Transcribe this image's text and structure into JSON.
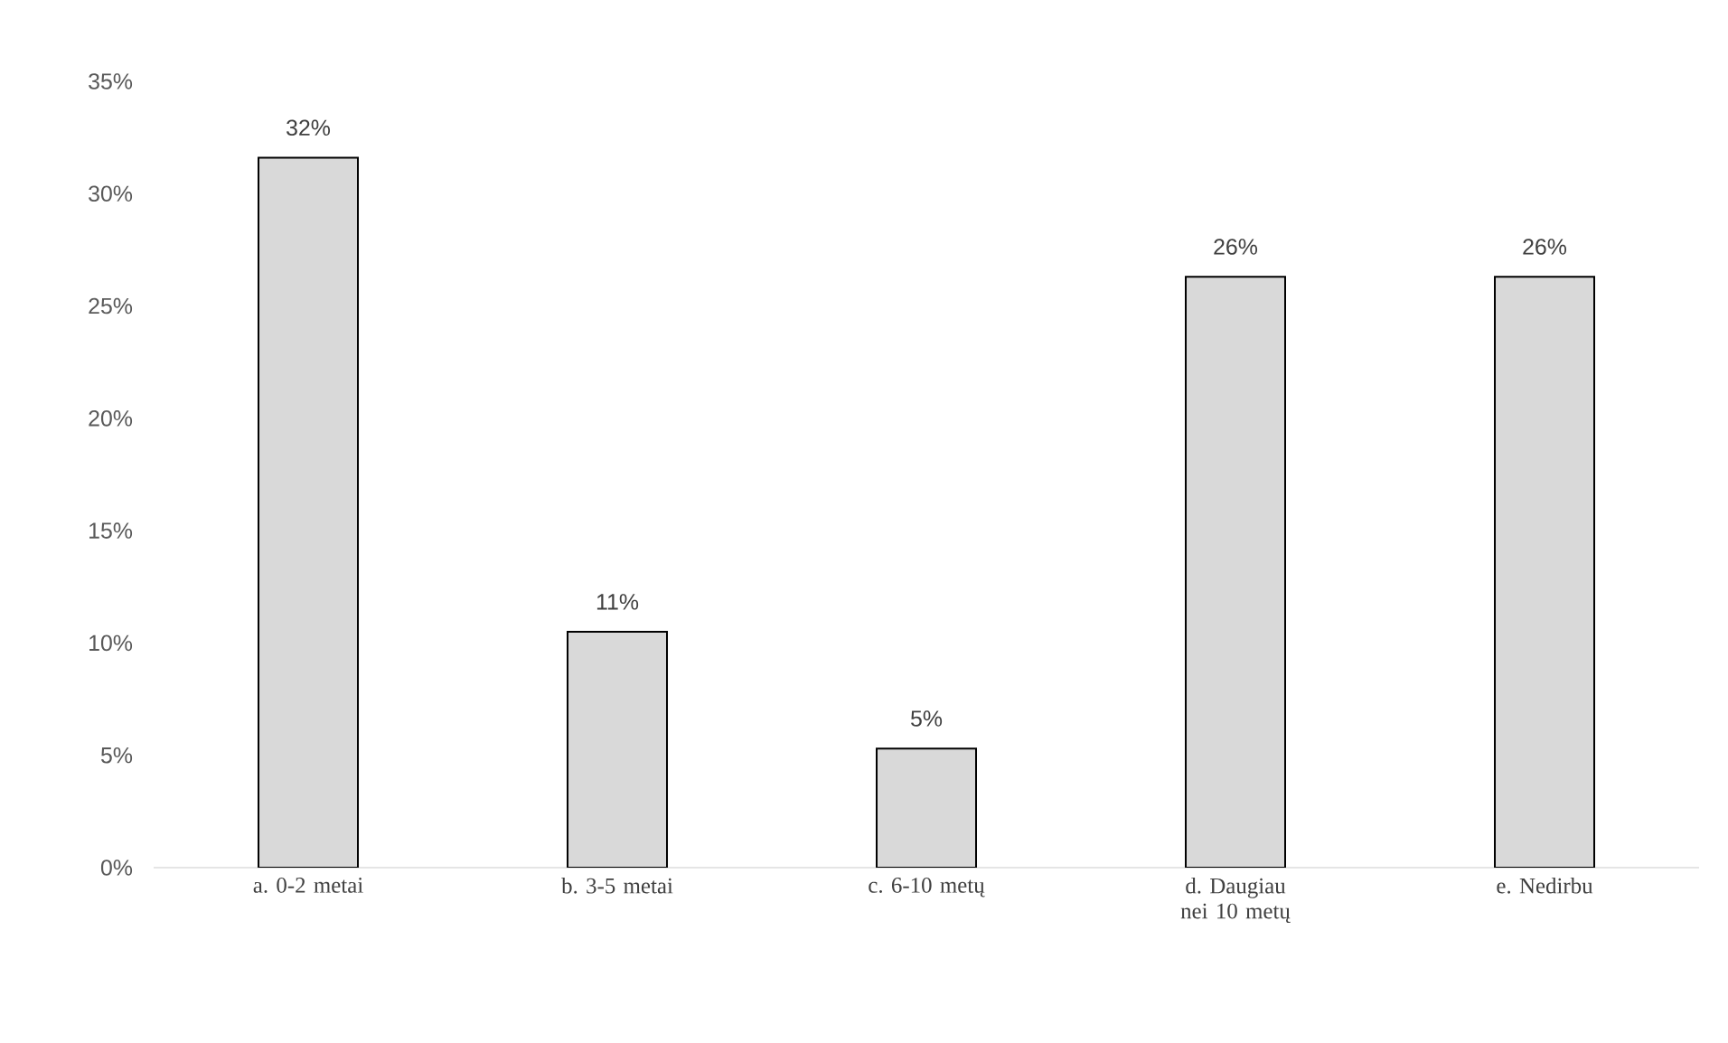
{
  "chart_data": {
    "type": "bar",
    "categories": [
      "a. 0-2 metai",
      "b. 3-5 metai",
      "c. 6-10 metų",
      "d. Daugiau nei 10 metų",
      "e. Nedirbu"
    ],
    "values": [
      31.6,
      10.5,
      5.3,
      26.3,
      26.3
    ],
    "value_labels": [
      "32%",
      "11%",
      "5%",
      "26%",
      "26%"
    ],
    "color": "#d9d9d9",
    "ylim": [
      0,
      35
    ],
    "yticks": [
      {
        "value": 0,
        "label": "0%"
      },
      {
        "value": 5,
        "label": "5%"
      },
      {
        "value": 10,
        "label": "10%"
      },
      {
        "value": 15,
        "label": "15%"
      },
      {
        "value": 20,
        "label": "20%"
      },
      {
        "value": 25,
        "label": "25%"
      },
      {
        "value": 30,
        "label": "30%"
      },
      {
        "value": 35,
        "label": "35%"
      }
    ]
  }
}
